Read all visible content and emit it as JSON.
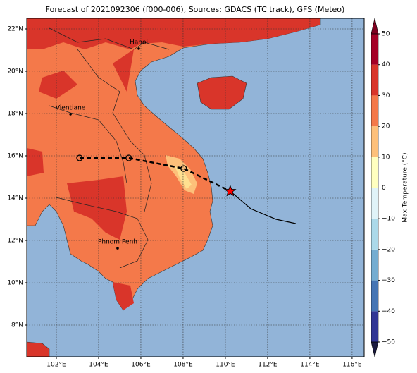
{
  "title": "Forecast of 2021092306 (f000-006), Sources: GDACS (TC track), GFS (Meteo)",
  "map": {
    "xlim": [
      100.6,
      116.57
    ],
    "ylim": [
      6.5,
      22.5
    ],
    "xticks": [
      {
        "value": 102,
        "label": "102°E"
      },
      {
        "value": 104,
        "label": "104°E"
      },
      {
        "value": 106,
        "label": "106°E"
      },
      {
        "value": 108,
        "label": "108°E"
      },
      {
        "value": 110,
        "label": "110°E"
      },
      {
        "value": 112,
        "label": "112°E"
      },
      {
        "value": 114,
        "label": "114°E"
      },
      {
        "value": 116,
        "label": "116°E"
      }
    ],
    "yticks": [
      {
        "value": 8,
        "label": "8°N"
      },
      {
        "value": 10,
        "label": "10°N"
      },
      {
        "value": 12,
        "label": "12°N"
      },
      {
        "value": 14,
        "label": "14°N"
      },
      {
        "value": 16,
        "label": "16°N"
      },
      {
        "value": 18,
        "label": "18°N"
      },
      {
        "value": 20,
        "label": "20°N"
      },
      {
        "value": 22,
        "label": "22°N"
      }
    ],
    "grid": true,
    "cities": [
      {
        "name": "Hanoi",
        "lon": 105.9,
        "lat": 21.07
      },
      {
        "name": "Vientiane",
        "lon": 102.67,
        "lat": 17.97
      },
      {
        "name": "Phnom Penh",
        "lon": 104.9,
        "lat": 11.63
      }
    ],
    "forecast_track": {
      "lon": [
        103.1,
        105.43,
        108.03,
        110.23
      ],
      "lat": [
        15.9,
        15.9,
        15.4,
        14.33
      ]
    },
    "past_track": {
      "lon": [
        110.23,
        111.2,
        112.4,
        113.33
      ],
      "lat": [
        14.33,
        13.5,
        13.0,
        12.8
      ]
    }
  },
  "colorbar": {
    "label": "Max Temperature (°C)",
    "ticks": [
      {
        "value": -50,
        "label": "−50"
      },
      {
        "value": -40,
        "label": "−40"
      },
      {
        "value": -30,
        "label": "−30"
      },
      {
        "value": -20,
        "label": "−20"
      },
      {
        "value": -10,
        "label": "−10"
      },
      0,
      10,
      20,
      30,
      40,
      50
    ],
    "colors": [
      "#313695",
      "#4575b4",
      "#74add1",
      "#abd9e9",
      "#e0f3f8",
      "#ffffbf",
      "#fdc07a",
      "#f4794a",
      "#d9352a",
      "#a50026"
    ]
  }
}
